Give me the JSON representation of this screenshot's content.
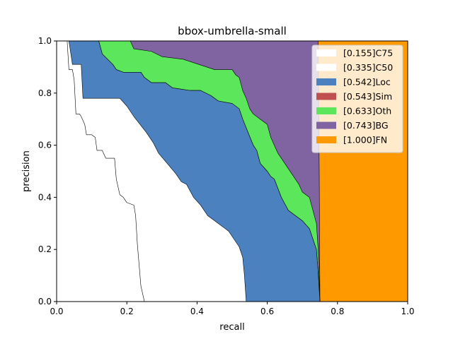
{
  "chart_data": {
    "type": "area",
    "title": "bbox-umbrella-small",
    "xlabel": "recall",
    "ylabel": "precision",
    "xlim": [
      0,
      1
    ],
    "ylim": [
      0,
      1
    ],
    "xticks": [
      "0.0",
      "0.2",
      "0.4",
      "0.6",
      "0.8",
      "1.0"
    ],
    "yticks": [
      "0.0",
      "0.2",
      "0.4",
      "0.6",
      "0.8",
      "1.0"
    ],
    "grid": false,
    "legend_position": "top-right",
    "series": [
      {
        "name": "[0.155]C75",
        "color": "#ffffff",
        "points": [
          [
            0.0,
            1.0
          ],
          [
            0.03,
            1.0
          ],
          [
            0.035,
            0.89
          ],
          [
            0.045,
            0.89
          ],
          [
            0.05,
            0.85
          ],
          [
            0.055,
            0.72
          ],
          [
            0.065,
            0.72
          ],
          [
            0.07,
            0.71
          ],
          [
            0.08,
            0.68
          ],
          [
            0.085,
            0.64
          ],
          [
            0.1,
            0.64
          ],
          [
            0.11,
            0.63
          ],
          [
            0.115,
            0.58
          ],
          [
            0.13,
            0.58
          ],
          [
            0.14,
            0.55
          ],
          [
            0.165,
            0.55
          ],
          [
            0.17,
            0.47
          ],
          [
            0.18,
            0.41
          ],
          [
            0.19,
            0.4
          ],
          [
            0.2,
            0.38
          ],
          [
            0.22,
            0.37
          ],
          [
            0.225,
            0.33
          ],
          [
            0.23,
            0.22
          ],
          [
            0.24,
            0.06
          ],
          [
            0.25,
            0.0
          ]
        ]
      },
      {
        "name": "[0.335]C50",
        "color": "#ffffff",
        "points": [
          [
            0.0,
            1.0
          ],
          [
            0.035,
            1.0
          ],
          [
            0.045,
            0.91
          ],
          [
            0.07,
            0.91
          ],
          [
            0.075,
            0.78
          ],
          [
            0.18,
            0.78
          ],
          [
            0.2,
            0.75
          ],
          [
            0.21,
            0.73
          ],
          [
            0.22,
            0.71
          ],
          [
            0.255,
            0.65
          ],
          [
            0.275,
            0.61
          ],
          [
            0.29,
            0.57
          ],
          [
            0.315,
            0.53
          ],
          [
            0.34,
            0.49
          ],
          [
            0.355,
            0.46
          ],
          [
            0.37,
            0.45
          ],
          [
            0.39,
            0.4
          ],
          [
            0.41,
            0.37
          ],
          [
            0.42,
            0.35
          ],
          [
            0.43,
            0.33
          ],
          [
            0.44,
            0.32
          ],
          [
            0.46,
            0.3
          ],
          [
            0.48,
            0.28
          ],
          [
            0.49,
            0.27
          ],
          [
            0.5,
            0.25
          ],
          [
            0.51,
            0.23
          ],
          [
            0.52,
            0.21
          ],
          [
            0.53,
            0.17
          ],
          [
            0.535,
            0.1
          ],
          [
            0.54,
            0.0
          ]
        ]
      },
      {
        "name": "[0.542]Loc",
        "color": "#4c81bf",
        "points": [
          [
            0.0,
            1.0
          ],
          [
            0.12,
            1.0
          ],
          [
            0.13,
            0.95
          ],
          [
            0.16,
            0.91
          ],
          [
            0.17,
            0.89
          ],
          [
            0.19,
            0.88
          ],
          [
            0.24,
            0.88
          ],
          [
            0.25,
            0.86
          ],
          [
            0.27,
            0.84
          ],
          [
            0.31,
            0.84
          ],
          [
            0.33,
            0.82
          ],
          [
            0.38,
            0.81
          ],
          [
            0.41,
            0.81
          ],
          [
            0.44,
            0.79
          ],
          [
            0.46,
            0.77
          ],
          [
            0.5,
            0.76
          ],
          [
            0.52,
            0.74
          ],
          [
            0.53,
            0.7
          ],
          [
            0.56,
            0.6
          ],
          [
            0.57,
            0.58
          ],
          [
            0.58,
            0.53
          ],
          [
            0.6,
            0.5
          ],
          [
            0.61,
            0.48
          ],
          [
            0.62,
            0.47
          ],
          [
            0.64,
            0.4
          ],
          [
            0.66,
            0.35
          ],
          [
            0.68,
            0.33
          ],
          [
            0.7,
            0.31
          ],
          [
            0.72,
            0.28
          ],
          [
            0.73,
            0.24
          ],
          [
            0.74,
            0.2
          ],
          [
            0.745,
            0.11
          ],
          [
            0.75,
            0.0
          ]
        ]
      },
      {
        "name": "[0.543]Sim",
        "color": "#c0504d",
        "points": [
          [
            0.0,
            1.0
          ],
          [
            0.12,
            1.0
          ],
          [
            0.13,
            0.95
          ],
          [
            0.16,
            0.91
          ],
          [
            0.17,
            0.89
          ],
          [
            0.19,
            0.88
          ],
          [
            0.24,
            0.88
          ],
          [
            0.25,
            0.86
          ],
          [
            0.27,
            0.84
          ],
          [
            0.31,
            0.84
          ],
          [
            0.33,
            0.82
          ],
          [
            0.38,
            0.81
          ],
          [
            0.41,
            0.81
          ],
          [
            0.44,
            0.79
          ],
          [
            0.46,
            0.77
          ],
          [
            0.5,
            0.76
          ],
          [
            0.52,
            0.74
          ],
          [
            0.53,
            0.7
          ],
          [
            0.56,
            0.6
          ],
          [
            0.57,
            0.58
          ],
          [
            0.58,
            0.53
          ],
          [
            0.6,
            0.5
          ],
          [
            0.61,
            0.48
          ],
          [
            0.62,
            0.47
          ],
          [
            0.64,
            0.4
          ],
          [
            0.66,
            0.35
          ],
          [
            0.68,
            0.33
          ],
          [
            0.7,
            0.31
          ],
          [
            0.72,
            0.28
          ],
          [
            0.73,
            0.24
          ],
          [
            0.74,
            0.2
          ],
          [
            0.745,
            0.11
          ],
          [
            0.75,
            0.0
          ]
        ]
      },
      {
        "name": "[0.633]Oth",
        "color": "#5ce65c",
        "points": [
          [
            0.0,
            1.0
          ],
          [
            0.21,
            1.0
          ],
          [
            0.22,
            0.97
          ],
          [
            0.27,
            0.96
          ],
          [
            0.3,
            0.94
          ],
          [
            0.36,
            0.93
          ],
          [
            0.45,
            0.89
          ],
          [
            0.5,
            0.89
          ],
          [
            0.51,
            0.87
          ],
          [
            0.52,
            0.86
          ],
          [
            0.53,
            0.81
          ],
          [
            0.54,
            0.78
          ],
          [
            0.55,
            0.74
          ],
          [
            0.56,
            0.72
          ],
          [
            0.58,
            0.7
          ],
          [
            0.6,
            0.68
          ],
          [
            0.61,
            0.63
          ],
          [
            0.62,
            0.6
          ],
          [
            0.63,
            0.57
          ],
          [
            0.65,
            0.53
          ],
          [
            0.67,
            0.49
          ],
          [
            0.69,
            0.45
          ],
          [
            0.7,
            0.42
          ],
          [
            0.72,
            0.4
          ],
          [
            0.73,
            0.35
          ],
          [
            0.74,
            0.3
          ],
          [
            0.745,
            0.2
          ],
          [
            0.75,
            0.0
          ]
        ]
      },
      {
        "name": "[0.743]BG",
        "color": "#8064a2",
        "points": [
          [
            0.0,
            1.0
          ],
          [
            0.745,
            1.0
          ],
          [
            0.748,
            0.5
          ],
          [
            0.75,
            0.0
          ]
        ]
      },
      {
        "name": "[1.000]FN",
        "color": "#ff9900",
        "points": [
          [
            0.0,
            1.0
          ],
          [
            1.0,
            1.0
          ],
          [
            1.0,
            0.0
          ]
        ]
      }
    ]
  }
}
